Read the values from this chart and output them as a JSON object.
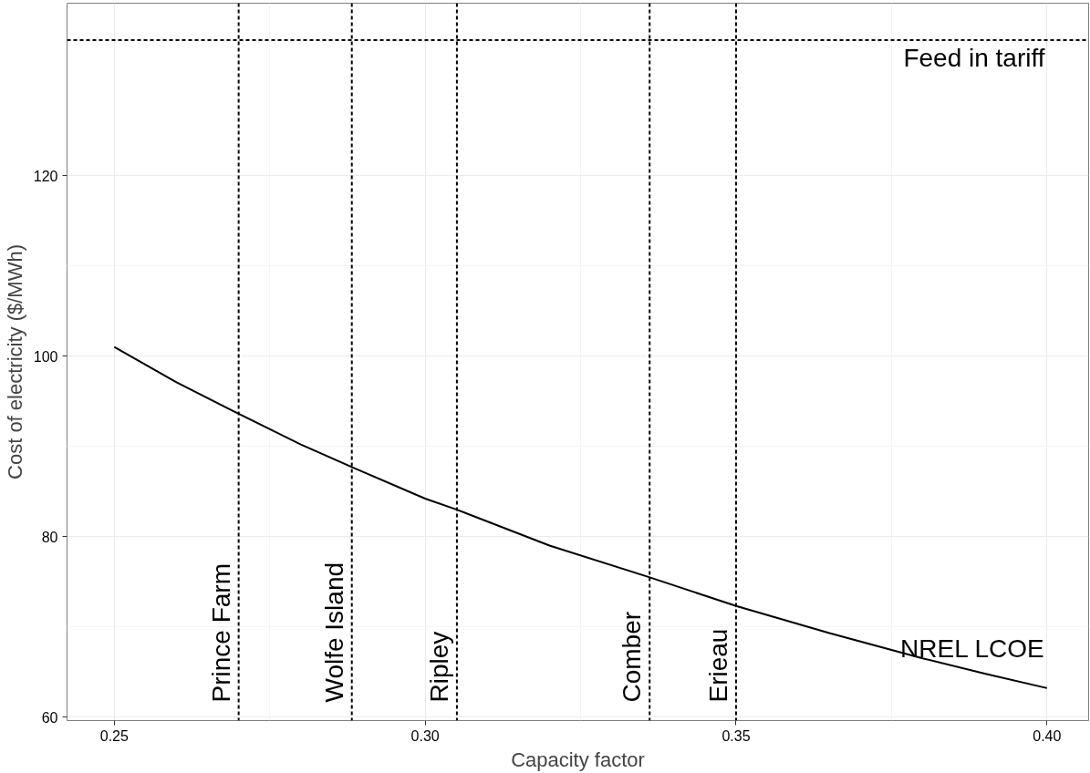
{
  "chart_data": {
    "type": "line",
    "xlabel": "Capacity factor",
    "ylabel": "Cost of electricity ($/MWh)",
    "x": [
      0.25,
      0.26,
      0.27,
      0.28,
      0.2882,
      0.3,
      0.305,
      0.32,
      0.336,
      0.35,
      0.365,
      0.38,
      0.39,
      0.4
    ],
    "series": [
      {
        "name": "NREL LCOE",
        "color": "#000000",
        "values": [
          101,
          97.1,
          93.6,
          90.2,
          87.7,
          84.2,
          83,
          79,
          75.5,
          72.3,
          69.3,
          66.5,
          64.8,
          63.2
        ]
      }
    ],
    "xlim": [
      0.2424,
      0.4067
    ],
    "ylim": [
      59.6,
      139.1
    ],
    "xticks": [
      {
        "value": 0.25,
        "label": "0.25"
      },
      {
        "value": 0.3,
        "label": "0.30"
      },
      {
        "value": 0.35,
        "label": "0.35"
      },
      {
        "value": 0.4,
        "label": "0.40"
      }
    ],
    "yticks": [
      60,
      80,
      100,
      120
    ],
    "ref_lines": [
      {
        "axis": "y",
        "value": 135,
        "label": "Feed in tariff",
        "line_style": "dashed"
      },
      {
        "axis": "x",
        "value": 0.27,
        "label": "Prince Farm",
        "line_style": "dashed"
      },
      {
        "axis": "x",
        "value": 0.2882,
        "label": "Wolfe Island",
        "line_style": "dashed"
      },
      {
        "axis": "x",
        "value": 0.3051,
        "label": "Ripley",
        "line_style": "dashed"
      },
      {
        "axis": "x",
        "value": 0.3361,
        "label": "Comber",
        "line_style": "dashed"
      },
      {
        "axis": "x",
        "value": 0.35,
        "label": "Erieau",
        "line_style": "dashed"
      }
    ],
    "grid": true,
    "marker": "none",
    "line_style": "solid"
  }
}
